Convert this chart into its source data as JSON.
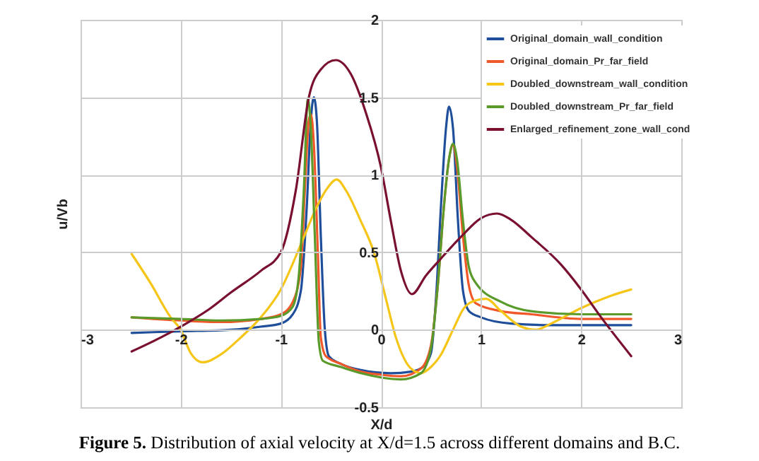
{
  "chart_data": {
    "type": "line",
    "xlabel": "X/d",
    "ylabel": "u/Vb",
    "xlim": [
      -3,
      3
    ],
    "xticks": [
      -3,
      -2,
      -1,
      0,
      1,
      2,
      3
    ],
    "ylim": [
      -0.5,
      2
    ],
    "yticks": [
      -0.5,
      0,
      0.5,
      1,
      1.5,
      2
    ],
    "grid": true,
    "legend": "top right",
    "annotations": [
      "Figure 5. Distribution of axial velocity at X/d=1.5 across different domains and B.C."
    ],
    "series": [
      {
        "name": "Original_domain_wall_condition",
        "color": "#1f4e9a",
        "x": [
          -2.49,
          -2,
          -1.5,
          -1.2,
          -1,
          -0.88,
          -0.8,
          -0.74,
          -0.7,
          -0.67,
          -0.64,
          -0.6,
          -0.56,
          -0.52,
          -0.4,
          -0.2,
          0.1,
          0.3,
          0.42,
          0.5,
          0.55,
          0.6,
          0.65,
          0.68,
          0.72,
          0.77,
          0.82,
          0.88,
          1.0,
          1.3,
          1.7,
          2.0,
          2.5
        ],
        "values": [
          -0.02,
          -0.01,
          0.0,
          0.02,
          0.04,
          0.1,
          0.25,
          0.8,
          1.35,
          1.5,
          1.35,
          0.6,
          0.0,
          -0.17,
          -0.22,
          -0.26,
          -0.28,
          -0.27,
          -0.24,
          -0.15,
          0.2,
          0.8,
          1.3,
          1.44,
          1.3,
          0.7,
          0.25,
          0.12,
          0.08,
          0.04,
          0.03,
          0.03,
          0.03
        ]
      },
      {
        "name": "Original_domain_Pr_far_field",
        "color": "#f0582a",
        "x": [
          -2.49,
          -2,
          -1.6,
          -1.2,
          -1,
          -0.88,
          -0.8,
          -0.76,
          -0.72,
          -0.7,
          -0.67,
          -0.63,
          -0.6,
          -0.55,
          -0.4,
          -0.2,
          0,
          0.2,
          0.4,
          0.5,
          0.57,
          0.63,
          0.68,
          0.72,
          0.76,
          0.82,
          0.88,
          0.95,
          1.2,
          1.5,
          2.0,
          2.5
        ],
        "values": [
          0.08,
          0.06,
          0.05,
          0.07,
          0.1,
          0.18,
          0.4,
          0.9,
          1.35,
          1.39,
          1.2,
          0.5,
          -0.05,
          -0.17,
          -0.22,
          -0.27,
          -0.29,
          -0.3,
          -0.25,
          -0.1,
          0.3,
          0.8,
          1.1,
          1.19,
          1.05,
          0.6,
          0.28,
          0.17,
          0.12,
          0.1,
          0.07,
          0.07
        ]
      },
      {
        "name": "Doubled_downstream_wall_condition",
        "color": "#f5c518",
        "x": [
          -2.49,
          -2.3,
          -2.1,
          -2,
          -1.9,
          -1.78,
          -1.6,
          -1.4,
          -1.2,
          -1,
          -0.8,
          -0.65,
          -0.55,
          -0.44,
          -0.35,
          -0.2,
          -0.07,
          0.05,
          0.15,
          0.3,
          0.4,
          0.5,
          0.6,
          0.72,
          0.83,
          0.95,
          1.05,
          1.2,
          1.4,
          1.55,
          1.7,
          2.0,
          2.3,
          2.5
        ],
        "values": [
          0.49,
          0.3,
          0.08,
          0.0,
          -0.15,
          -0.21,
          -0.16,
          -0.05,
          0.08,
          0.26,
          0.55,
          0.78,
          0.9,
          0.97,
          0.9,
          0.7,
          0.5,
          0.2,
          -0.05,
          -0.25,
          -0.28,
          -0.24,
          -0.16,
          0.0,
          0.14,
          0.19,
          0.2,
          0.12,
          0.02,
          0.0,
          0.04,
          0.14,
          0.22,
          0.26
        ]
      },
      {
        "name": "Doubled_downstream_Pr_far_field",
        "color": "#5a9a2a",
        "x": [
          -2.49,
          -2,
          -1.6,
          -1.2,
          -1,
          -0.88,
          -0.82,
          -0.77,
          -0.73,
          -0.7,
          -0.66,
          -0.62,
          -0.58,
          -0.4,
          -0.2,
          0.2,
          0.4,
          0.5,
          0.57,
          0.63,
          0.68,
          0.72,
          0.76,
          0.82,
          0.88,
          0.95,
          1.2,
          1.5,
          2.0,
          2.5
        ],
        "values": [
          0.08,
          0.07,
          0.06,
          0.07,
          0.09,
          0.15,
          0.35,
          0.9,
          1.49,
          1.3,
          0.6,
          -0.08,
          -0.2,
          -0.24,
          -0.28,
          -0.32,
          -0.28,
          -0.12,
          0.3,
          0.8,
          1.1,
          1.2,
          1.1,
          0.7,
          0.4,
          0.3,
          0.18,
          0.12,
          0.1,
          0.1
        ]
      },
      {
        "name": "Enlarged_refinement_zone_wall_cond",
        "color": "#7a1030",
        "x": [
          -2.49,
          -2.2,
          -2,
          -1.7,
          -1.5,
          -1.2,
          -1,
          -0.85,
          -0.72,
          -0.6,
          -0.45,
          -0.3,
          -0.15,
          0,
          0.1,
          0.2,
          0.31,
          0.45,
          0.6,
          0.8,
          1.0,
          1.16,
          1.3,
          1.5,
          1.8,
          2.0,
          2.2,
          2.5
        ],
        "values": [
          -0.14,
          -0.05,
          0.02,
          0.14,
          0.24,
          0.38,
          0.5,
          0.9,
          1.5,
          1.68,
          1.74,
          1.65,
          1.4,
          1.05,
          0.7,
          0.38,
          0.23,
          0.35,
          0.46,
          0.6,
          0.72,
          0.75,
          0.71,
          0.6,
          0.42,
          0.26,
          0.08,
          -0.17
        ]
      }
    ]
  }
}
